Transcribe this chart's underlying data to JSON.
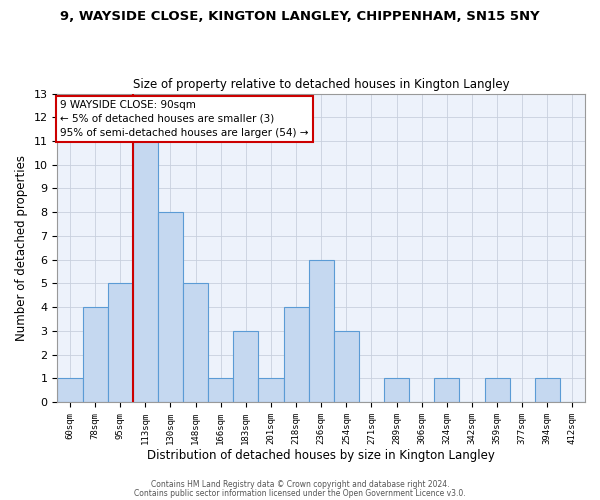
{
  "title1": "9, WAYSIDE CLOSE, KINGTON LANGLEY, CHIPPENHAM, SN15 5NY",
  "title2": "Size of property relative to detached houses in Kington Langley",
  "xlabel": "Distribution of detached houses by size in Kington Langley",
  "ylabel": "Number of detached properties",
  "bin_labels": [
    "60sqm",
    "78sqm",
    "95sqm",
    "113sqm",
    "130sqm",
    "148sqm",
    "166sqm",
    "183sqm",
    "201sqm",
    "218sqm",
    "236sqm",
    "254sqm",
    "271sqm",
    "289sqm",
    "306sqm",
    "324sqm",
    "342sqm",
    "359sqm",
    "377sqm",
    "394sqm",
    "412sqm"
  ],
  "bar_values": [
    1,
    4,
    5,
    11,
    8,
    5,
    1,
    3,
    1,
    4,
    6,
    3,
    0,
    1,
    0,
    1,
    0,
    1,
    0,
    1,
    0
  ],
  "bar_color": "#c5d8f0",
  "bar_edge_color": "#5b9bd5",
  "red_line_index": 2,
  "red_line_color": "#cc0000",
  "annotation_line1": "9 WAYSIDE CLOSE: 90sqm",
  "annotation_line2": "← 5% of detached houses are smaller (3)",
  "annotation_line3": "95% of semi-detached houses are larger (54) →",
  "annotation_box_color": "#ffffff",
  "annotation_box_edge": "#cc0000",
  "ylim": [
    0,
    13
  ],
  "yticks": [
    0,
    1,
    2,
    3,
    4,
    5,
    6,
    7,
    8,
    9,
    10,
    11,
    12,
    13
  ],
  "footer1": "Contains HM Land Registry data © Crown copyright and database right 2024.",
  "footer2": "Contains public sector information licensed under the Open Government Licence v3.0.",
  "bg_color": "#ffffff",
  "plot_bg_color": "#edf2fb"
}
